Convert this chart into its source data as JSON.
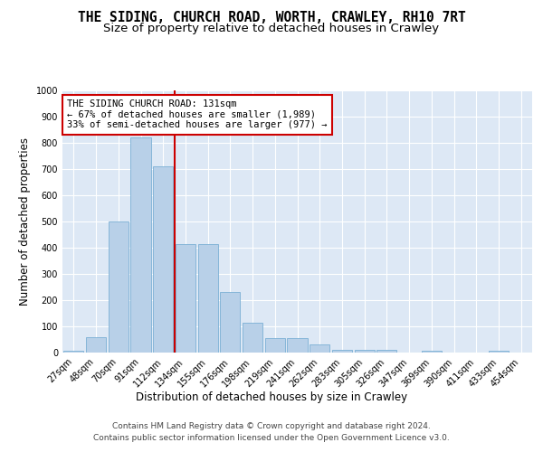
{
  "title": "THE SIDING, CHURCH ROAD, WORTH, CRAWLEY, RH10 7RT",
  "subtitle": "Size of property relative to detached houses in Crawley",
  "xlabel": "Distribution of detached houses by size in Crawley",
  "ylabel": "Number of detached properties",
  "bins": [
    "27sqm",
    "48sqm",
    "70sqm",
    "91sqm",
    "112sqm",
    "134sqm",
    "155sqm",
    "176sqm",
    "198sqm",
    "219sqm",
    "241sqm",
    "262sqm",
    "283sqm",
    "305sqm",
    "326sqm",
    "347sqm",
    "369sqm",
    "390sqm",
    "411sqm",
    "433sqm",
    "454sqm"
  ],
  "values": [
    8,
    60,
    500,
    820,
    710,
    415,
    415,
    230,
    115,
    55,
    55,
    30,
    12,
    12,
    12,
    0,
    8,
    0,
    0,
    8,
    0
  ],
  "bar_color": "#b8d0e8",
  "bar_edge_color": "#7bafd4",
  "vline_color": "#cc0000",
  "annotation_text": "THE SIDING CHURCH ROAD: 131sqm\n← 67% of detached houses are smaller (1,989)\n33% of semi-detached houses are larger (977) →",
  "annotation_box_color": "#ffffff",
  "annotation_box_edge": "#cc0000",
  "footer1": "Contains HM Land Registry data © Crown copyright and database right 2024.",
  "footer2": "Contains public sector information licensed under the Open Government Licence v3.0.",
  "ylim": [
    0,
    1000
  ],
  "yticks": [
    0,
    100,
    200,
    300,
    400,
    500,
    600,
    700,
    800,
    900,
    1000
  ],
  "background_color": "#ffffff",
  "plot_bg_color": "#dde8f5",
  "grid_color": "#ffffff",
  "title_fontsize": 10.5,
  "subtitle_fontsize": 9.5,
  "tick_fontsize": 7,
  "label_fontsize": 8.5,
  "annot_fontsize": 7.5
}
